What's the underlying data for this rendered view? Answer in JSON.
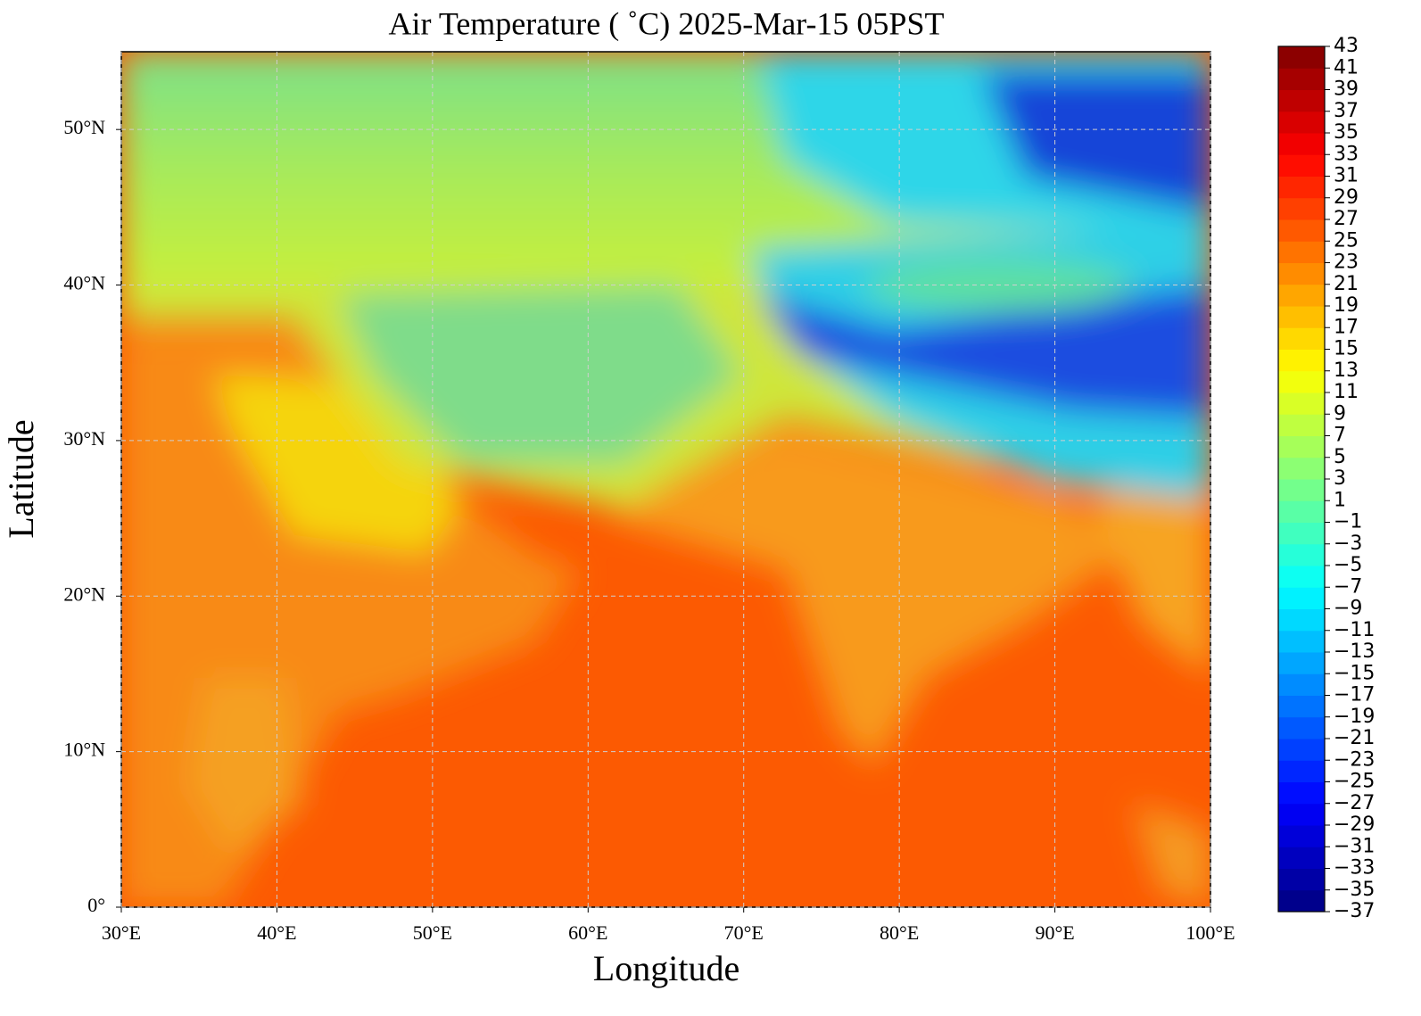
{
  "chart_data": {
    "type": "map",
    "title": "Air Temperature ( ˚C)  2025-Mar-15 05PST",
    "x_label": "Longitude",
    "y_label": "Latitude",
    "xlim": [
      30,
      100
    ],
    "xticks": [
      {
        "value": 30,
        "label": "30°E"
      },
      {
        "value": 40,
        "label": "40°E"
      },
      {
        "value": 50,
        "label": "50°E"
      },
      {
        "value": 60,
        "label": "60°E"
      },
      {
        "value": 70,
        "label": "70°E"
      },
      {
        "value": 80,
        "label": "80°E"
      },
      {
        "value": 90,
        "label": "90°E"
      },
      {
        "value": 100,
        "label": "100°E"
      }
    ],
    "ylim": [
      0,
      55
    ],
    "yticks": [
      {
        "value": 0,
        "label": "0°"
      },
      {
        "value": 10,
        "label": "10°N"
      },
      {
        "value": 20,
        "label": "20°N"
      },
      {
        "value": 30,
        "label": "30°N"
      },
      {
        "value": 40,
        "label": "40°N"
      },
      {
        "value": 50,
        "label": "50°N"
      }
    ],
    "grid": true,
    "colormap": "jet",
    "colorbar_lim": [
      -37,
      43
    ],
    "colorbar_ticks": [
      {
        "value": -37,
        "label": "−37"
      },
      {
        "value": -35,
        "label": "−35"
      },
      {
        "value": -33,
        "label": "−33"
      },
      {
        "value": -31,
        "label": "−31"
      },
      {
        "value": -29,
        "label": "−29"
      },
      {
        "value": -27,
        "label": "−27"
      },
      {
        "value": -25,
        "label": "−25"
      },
      {
        "value": -23,
        "label": "−23"
      },
      {
        "value": -21,
        "label": "−21"
      },
      {
        "value": -19,
        "label": "−19"
      },
      {
        "value": -17,
        "label": "−17"
      },
      {
        "value": -15,
        "label": "−15"
      },
      {
        "value": -13,
        "label": "−13"
      },
      {
        "value": -11,
        "label": "−11"
      },
      {
        "value": -9,
        "label": "−9"
      },
      {
        "value": -7,
        "label": "−7"
      },
      {
        "value": -5,
        "label": "−5"
      },
      {
        "value": -3,
        "label": "−3"
      },
      {
        "value": -1,
        "label": "−1"
      },
      1,
      3,
      5,
      7,
      9,
      11,
      13,
      15,
      17,
      19,
      21,
      23,
      25,
      27,
      29,
      31,
      33,
      35,
      37,
      39,
      41,
      43
    ]
  }
}
